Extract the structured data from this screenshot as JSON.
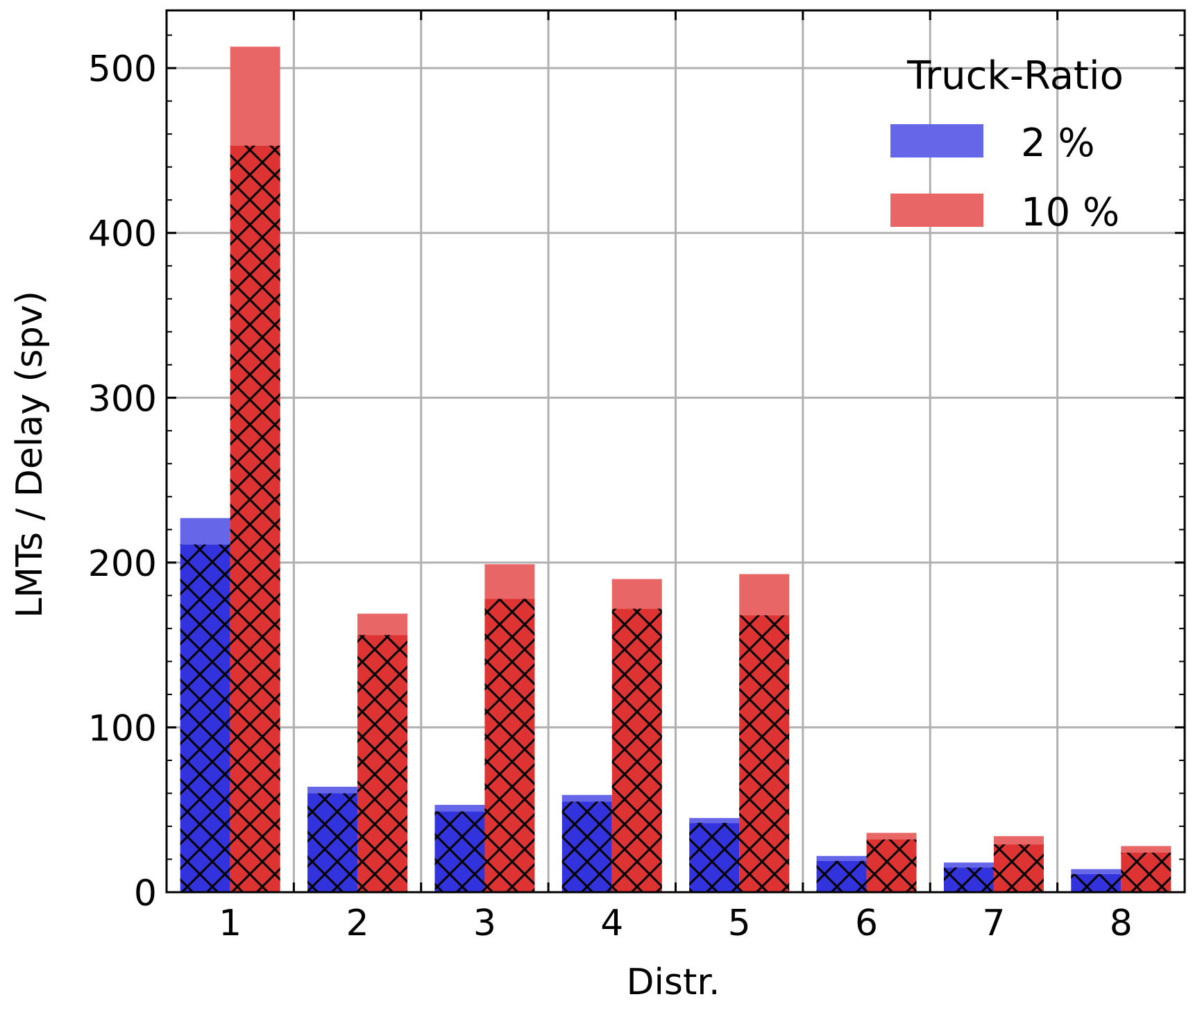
{
  "chart_data": {
    "type": "bar",
    "xlabel": "Distr.",
    "ylabel": "LMTs / Delay (spv)",
    "categories": [
      "1",
      "2",
      "3",
      "4",
      "5",
      "6",
      "7",
      "8"
    ],
    "ylim": [
      0,
      535
    ],
    "yticks": [
      "0",
      "100",
      "200",
      "300",
      "400",
      "500"
    ],
    "grid": true,
    "legend": {
      "title": "Truck-Ratio",
      "placement": "top-right"
    },
    "series": [
      {
        "name": "2 %",
        "color": "#3333dd",
        "light_color": "#6666e8",
        "total": [
          227,
          64,
          53,
          59,
          45,
          22,
          18,
          14
        ],
        "hatched_part": [
          211,
          60,
          49,
          55,
          42,
          19,
          15,
          11
        ]
      },
      {
        "name": "10 %",
        "color": "#dd3333",
        "light_color": "#e86666",
        "total": [
          513,
          169,
          199,
          190,
          193,
          36,
          34,
          28
        ],
        "hatched_part": [
          453,
          156,
          178,
          172,
          168,
          32,
          29,
          24
        ]
      }
    ]
  }
}
